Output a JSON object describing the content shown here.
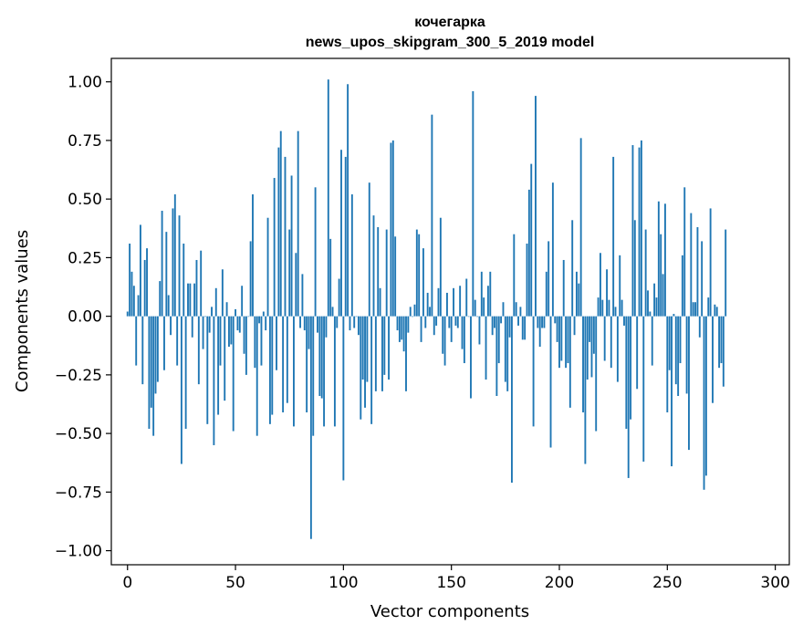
{
  "chart_data": {
    "type": "bar",
    "title": "кочегарка",
    "subtitle": "news_upos_skipgram_300_5_2019 model",
    "xlabel": "Vector components",
    "ylabel": "Components values",
    "xlim": [
      -7.5,
      306.5
    ],
    "ylim": [
      -1.06,
      1.1
    ],
    "xticks": [
      0,
      50,
      100,
      150,
      200,
      250,
      300
    ],
    "xtick_labels": [
      "0",
      "50",
      "100",
      "150",
      "200",
      "250",
      "300"
    ],
    "yticks": [
      -1.0,
      -0.75,
      -0.5,
      -0.25,
      0.0,
      0.25,
      0.5,
      0.75,
      1.0
    ],
    "ytick_labels": [
      "−1.00",
      "−0.75",
      "−0.50",
      "−0.25",
      "0.00",
      "0.25",
      "0.50",
      "0.75",
      "1.00"
    ],
    "bar_color": "#1f77b4",
    "values": [
      0.02,
      0.31,
      0.19,
      0.13,
      -0.21,
      0.09,
      0.39,
      -0.29,
      0.24,
      0.29,
      -0.48,
      -0.39,
      -0.51,
      -0.33,
      -0.28,
      0.15,
      0.45,
      -0.23,
      0.36,
      0.09,
      -0.08,
      0.46,
      0.52,
      -0.21,
      0.43,
      -0.63,
      0.31,
      -0.48,
      0.14,
      0.14,
      -0.09,
      0.14,
      0.24,
      -0.29,
      0.28,
      -0.14,
      0.0,
      -0.46,
      -0.07,
      0.04,
      -0.55,
      0.12,
      -0.42,
      -0.21,
      0.2,
      -0.36,
      0.06,
      -0.13,
      -0.12,
      -0.49,
      0.03,
      -0.06,
      -0.07,
      0.13,
      -0.16,
      -0.25,
      0.0,
      0.32,
      0.52,
      -0.22,
      -0.51,
      -0.03,
      -0.21,
      0.02,
      -0.06,
      0.42,
      -0.46,
      -0.42,
      0.59,
      -0.23,
      0.72,
      0.79,
      -0.41,
      0.68,
      -0.37,
      0.37,
      0.6,
      -0.47,
      0.27,
      0.79,
      -0.05,
      0.18,
      -0.06,
      -0.41,
      -0.14,
      -0.95,
      -0.51,
      0.55,
      -0.07,
      -0.34,
      -0.35,
      -0.47,
      -0.09,
      1.01,
      0.33,
      0.04,
      -0.47,
      -0.05,
      0.16,
      0.71,
      -0.7,
      0.68,
      0.99,
      -0.06,
      0.52,
      -0.05,
      0.0,
      -0.08,
      -0.44,
      -0.27,
      -0.39,
      -0.28,
      0.57,
      -0.46,
      0.43,
      -0.32,
      0.38,
      0.12,
      -0.32,
      -0.25,
      0.37,
      -0.27,
      0.74,
      0.75,
      0.34,
      -0.06,
      -0.11,
      -0.1,
      -0.15,
      -0.32,
      -0.07,
      0.04,
      0.0,
      0.05,
      0.37,
      0.35,
      -0.11,
      0.29,
      -0.05,
      0.1,
      0.04,
      0.86,
      -0.08,
      -0.04,
      0.12,
      0.42,
      -0.16,
      -0.21,
      0.1,
      -0.05,
      -0.11,
      0.12,
      -0.04,
      -0.05,
      0.13,
      -0.14,
      -0.2,
      0.16,
      0.0,
      -0.35,
      0.96,
      0.07,
      0.0,
      -0.12,
      0.19,
      0.08,
      -0.27,
      0.13,
      0.19,
      -0.08,
      -0.05,
      -0.34,
      -0.2,
      -0.03,
      0.06,
      -0.28,
      -0.32,
      -0.09,
      -0.71,
      0.35,
      0.06,
      -0.04,
      0.04,
      -0.1,
      -0.1,
      0.31,
      0.54,
      0.65,
      -0.47,
      0.94,
      -0.05,
      -0.13,
      -0.05,
      -0.05,
      0.19,
      0.32,
      -0.56,
      0.57,
      -0.03,
      -0.11,
      -0.22,
      -0.19,
      0.24,
      -0.22,
      -0.2,
      -0.39,
      0.41,
      -0.08,
      0.19,
      0.14,
      0.76,
      -0.41,
      -0.63,
      -0.27,
      -0.11,
      -0.26,
      -0.16,
      -0.49,
      0.08,
      0.27,
      0.07,
      -0.19,
      0.2,
      0.07,
      -0.22,
      0.68,
      0.04,
      -0.28,
      0.26,
      0.07,
      -0.04,
      -0.48,
      -0.69,
      -0.44,
      0.73,
      0.41,
      -0.31,
      0.72,
      0.75,
      -0.62,
      0.37,
      0.11,
      0.02,
      -0.21,
      0.14,
      0.08,
      0.49,
      0.35,
      0.18,
      0.48,
      -0.41,
      -0.23,
      -0.64,
      0.01,
      -0.29,
      -0.34,
      -0.2,
      0.26,
      0.55,
      -0.33,
      -0.57,
      0.44,
      0.06,
      0.06,
      0.38,
      -0.09,
      0.32,
      -0.74,
      -0.68,
      0.08,
      0.46,
      -0.37,
      0.05,
      0.04,
      -0.22,
      -0.2,
      -0.3,
      0.37
    ]
  }
}
